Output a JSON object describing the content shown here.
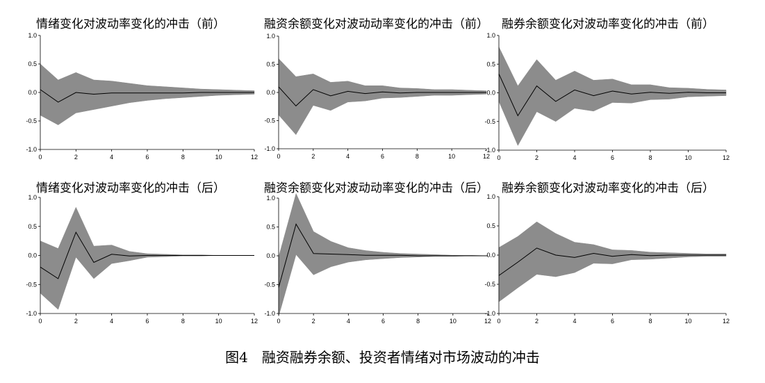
{
  "figure": {
    "caption": "图4　融资融券余额、投资者情绪对市场波动的冲击"
  },
  "chart_data": [
    {
      "type": "area",
      "title": "情绪变化对波动率变化的冲击（前）",
      "x": [
        0,
        1,
        2,
        3,
        4,
        5,
        6,
        7,
        8,
        9,
        10,
        11,
        12
      ],
      "series": [
        {
          "role": "irf",
          "values": [
            0.05,
            -0.17,
            0.0,
            -0.03,
            -0.01,
            -0.01,
            -0.01,
            -0.01,
            -0.01,
            0.0,
            0.0,
            0.0,
            0.0
          ]
        },
        {
          "role": "upper",
          "values": [
            0.5,
            0.22,
            0.35,
            0.22,
            0.2,
            0.16,
            0.12,
            0.1,
            0.08,
            0.06,
            0.05,
            0.04,
            0.03
          ]
        },
        {
          "role": "lower",
          "values": [
            -0.4,
            -0.57,
            -0.36,
            -0.3,
            -0.24,
            -0.18,
            -0.14,
            -0.11,
            -0.09,
            -0.07,
            -0.05,
            -0.04,
            -0.03
          ]
        }
      ],
      "xlim": [
        0,
        12
      ],
      "ylim": [
        -1,
        1
      ],
      "xticks": [
        "0",
        "2",
        "4",
        "6",
        "8",
        "10",
        "12"
      ],
      "yticks": [
        "1.0",
        "0.5",
        "0.0",
        "-0.5",
        "-1.0"
      ]
    },
    {
      "type": "area",
      "title": "融资余额变化对波动动率变化的冲击（前）",
      "x": [
        0,
        1,
        2,
        3,
        4,
        5,
        6,
        7,
        8,
        9,
        10,
        11,
        12
      ],
      "series": [
        {
          "role": "irf",
          "values": [
            0.1,
            -0.24,
            0.05,
            -0.06,
            0.02,
            -0.02,
            0.01,
            -0.01,
            0.0,
            0.0,
            0.0,
            0.0,
            0.0
          ]
        },
        {
          "role": "upper",
          "values": [
            0.6,
            0.28,
            0.33,
            0.18,
            0.2,
            0.12,
            0.12,
            0.08,
            0.07,
            0.05,
            0.05,
            0.04,
            0.03
          ]
        },
        {
          "role": "lower",
          "values": [
            -0.4,
            -0.75,
            -0.23,
            -0.32,
            -0.17,
            -0.15,
            -0.1,
            -0.09,
            -0.07,
            -0.05,
            -0.05,
            -0.04,
            -0.03
          ]
        }
      ],
      "xlim": [
        0,
        12
      ],
      "ylim": [
        -1,
        1
      ],
      "xticks": [
        "0",
        "2",
        "4",
        "6",
        "8",
        "10",
        "12"
      ],
      "yticks": [
        "1.0",
        "0.5",
        "0.0",
        "-0.5",
        "-1.0"
      ]
    },
    {
      "type": "area",
      "title": "融券余额变化对波动率变化的冲击（前）",
      "x": [
        0,
        1,
        2,
        3,
        4,
        5,
        6,
        7,
        8,
        9,
        10,
        11,
        12
      ],
      "series": [
        {
          "role": "irf",
          "values": [
            0.33,
            -0.4,
            0.12,
            -0.15,
            0.05,
            -0.05,
            0.03,
            -0.02,
            0.01,
            -0.01,
            0.01,
            0.0,
            0.0
          ]
        },
        {
          "role": "upper",
          "values": [
            0.8,
            0.12,
            0.58,
            0.22,
            0.38,
            0.22,
            0.24,
            0.14,
            0.14,
            0.09,
            0.08,
            0.06,
            0.05
          ]
        },
        {
          "role": "lower",
          "values": [
            -0.15,
            -0.92,
            -0.33,
            -0.5,
            -0.27,
            -0.32,
            -0.17,
            -0.18,
            -0.12,
            -0.11,
            -0.07,
            -0.06,
            -0.05
          ]
        }
      ],
      "xlim": [
        0,
        12
      ],
      "ylim": [
        -1,
        1
      ],
      "xticks": [
        "0",
        "2",
        "4",
        "6",
        "8",
        "10",
        "12"
      ],
      "yticks": [
        "1.0",
        "0.5",
        "0.0",
        "-0.5",
        "-1.0"
      ]
    },
    {
      "type": "area",
      "title": "情绪变化对波动率变化的冲击（后）",
      "x": [
        0,
        1,
        2,
        3,
        4,
        5,
        6,
        7,
        8,
        9,
        10,
        11,
        12
      ],
      "series": [
        {
          "role": "irf",
          "values": [
            -0.2,
            -0.4,
            0.4,
            -0.12,
            0.02,
            -0.01,
            0.0,
            0.0,
            0.0,
            0.0,
            0.0,
            0.0,
            0.0
          ]
        },
        {
          "role": "upper",
          "values": [
            0.25,
            0.12,
            0.83,
            0.16,
            0.18,
            0.07,
            0.03,
            0.02,
            0.01,
            0.01,
            0.0,
            0.0,
            0.0
          ]
        },
        {
          "role": "lower",
          "values": [
            -0.65,
            -0.93,
            -0.03,
            -0.4,
            -0.14,
            -0.09,
            -0.03,
            -0.02,
            -0.01,
            -0.01,
            0.0,
            0.0,
            0.0
          ]
        }
      ],
      "xlim": [
        0,
        12
      ],
      "ylim": [
        -1,
        1
      ],
      "xticks": [
        "0",
        "2",
        "4",
        "6",
        "8",
        "10",
        "12"
      ],
      "yticks": [
        "1.0",
        "0.5",
        "0.0",
        "-0.5",
        "-1.0"
      ]
    },
    {
      "type": "area",
      "title": "融资余额变化对波动动率变化的冲击（后）",
      "x": [
        0,
        1,
        2,
        3,
        4,
        5,
        6,
        7,
        8,
        9,
        10,
        11,
        12
      ],
      "series": [
        {
          "role": "irf",
          "values": [
            -0.55,
            0.55,
            0.04,
            0.03,
            0.02,
            0.01,
            0.01,
            0.01,
            0.0,
            0.0,
            0.0,
            0.0,
            0.0
          ]
        },
        {
          "role": "upper",
          "values": [
            -0.02,
            1.08,
            0.42,
            0.25,
            0.14,
            0.09,
            0.06,
            0.04,
            0.03,
            0.02,
            0.01,
            0.01,
            0.0
          ]
        },
        {
          "role": "lower",
          "values": [
            -1.05,
            0.02,
            -0.33,
            -0.19,
            -0.11,
            -0.07,
            -0.05,
            -0.03,
            -0.02,
            -0.01,
            -0.01,
            0.0,
            0.0
          ]
        }
      ],
      "xlim": [
        0,
        12
      ],
      "ylim": [
        -1,
        1
      ],
      "xticks": [
        "0",
        "2",
        "4",
        "6",
        "8",
        "10",
        "12"
      ],
      "yticks": [
        "1.0",
        "0.5",
        "0.0",
        "-0.5",
        "-1.0"
      ]
    },
    {
      "type": "area",
      "title": "融券余额变化对波动率变化的冲击（后）",
      "x": [
        0,
        1,
        2,
        3,
        4,
        5,
        6,
        7,
        8,
        9,
        10,
        11,
        12
      ],
      "series": [
        {
          "role": "irf",
          "values": [
            -0.35,
            -0.12,
            0.12,
            0.0,
            -0.04,
            0.03,
            -0.02,
            0.01,
            -0.01,
            0.0,
            0.0,
            0.0,
            0.0
          ]
        },
        {
          "role": "upper",
          "values": [
            0.13,
            0.32,
            0.57,
            0.37,
            0.22,
            0.18,
            0.09,
            0.08,
            0.05,
            0.04,
            0.03,
            0.02,
            0.02
          ]
        },
        {
          "role": "lower",
          "values": [
            -0.8,
            -0.56,
            -0.33,
            -0.37,
            -0.3,
            -0.14,
            -0.15,
            -0.08,
            -0.07,
            -0.05,
            -0.03,
            -0.02,
            -0.02
          ]
        }
      ],
      "xlim": [
        0,
        12
      ],
      "ylim": [
        -1,
        1
      ],
      "xticks": [
        "0",
        "2",
        "4",
        "6",
        "8",
        "10",
        "12"
      ],
      "yticks": [
        "1.0",
        "0.5",
        "0.0",
        "-0.5",
        "-1.0"
      ]
    }
  ]
}
